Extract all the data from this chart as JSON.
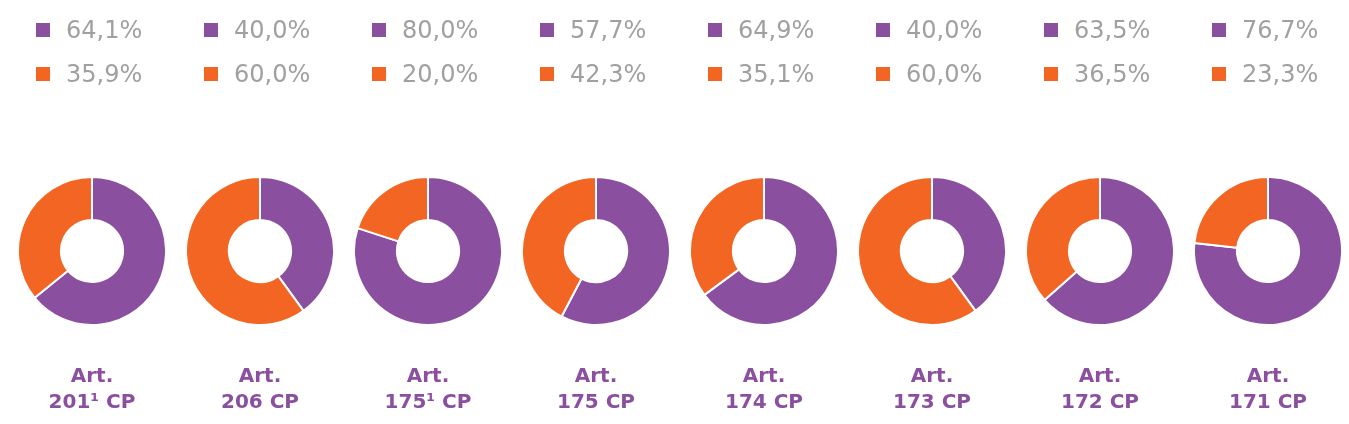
{
  "chart_data": [
    {
      "type": "donut",
      "title": "Art. 201¹ CP",
      "categories": [
        "64,1%",
        "35,9%"
      ],
      "values": [
        64.1,
        35.9
      ],
      "colors": [
        "#8b4fa0",
        "#f26522"
      ],
      "legend": "top"
    },
    {
      "type": "donut",
      "title": "Art. 206 CP",
      "categories": [
        "40,0%",
        "60,0%"
      ],
      "values": [
        40.0,
        60.0
      ],
      "colors": [
        "#8b4fa0",
        "#f26522"
      ],
      "legend": "top"
    },
    {
      "type": "donut",
      "title": "Art. 175¹ CP",
      "categories": [
        "80,0%",
        "20,0%"
      ],
      "values": [
        80.0,
        20.0
      ],
      "colors": [
        "#8b4fa0",
        "#f26522"
      ],
      "legend": "top"
    },
    {
      "type": "donut",
      "title": "Art. 175 CP",
      "categories": [
        "57,7%",
        "42,3%"
      ],
      "values": [
        57.7,
        42.3
      ],
      "colors": [
        "#8b4fa0",
        "#f26522"
      ],
      "legend": "top"
    },
    {
      "type": "donut",
      "title": "Art. 174 CP",
      "categories": [
        "64,9%",
        "35,1%"
      ],
      "values": [
        64.9,
        35.1
      ],
      "colors": [
        "#8b4fa0",
        "#f26522"
      ],
      "legend": "top"
    },
    {
      "type": "donut",
      "title": "Art. 173 CP",
      "categories": [
        "40,0%",
        "60,0%"
      ],
      "values": [
        40.0,
        60.0
      ],
      "colors": [
        "#8b4fa0",
        "#f26522"
      ],
      "legend": "top"
    },
    {
      "type": "donut",
      "title": "Art. 172 CP",
      "categories": [
        "63,5%",
        "36,5%"
      ],
      "values": [
        63.5,
        36.5
      ],
      "colors": [
        "#8b4fa0",
        "#f26522"
      ],
      "legend": "top"
    },
    {
      "type": "donut",
      "title": "Art. 171 CP",
      "categories": [
        "76,7%",
        "23,3%"
      ],
      "values": [
        76.7,
        23.3
      ],
      "colors": [
        "#8b4fa0",
        "#f26522"
      ],
      "legend": "top"
    }
  ]
}
